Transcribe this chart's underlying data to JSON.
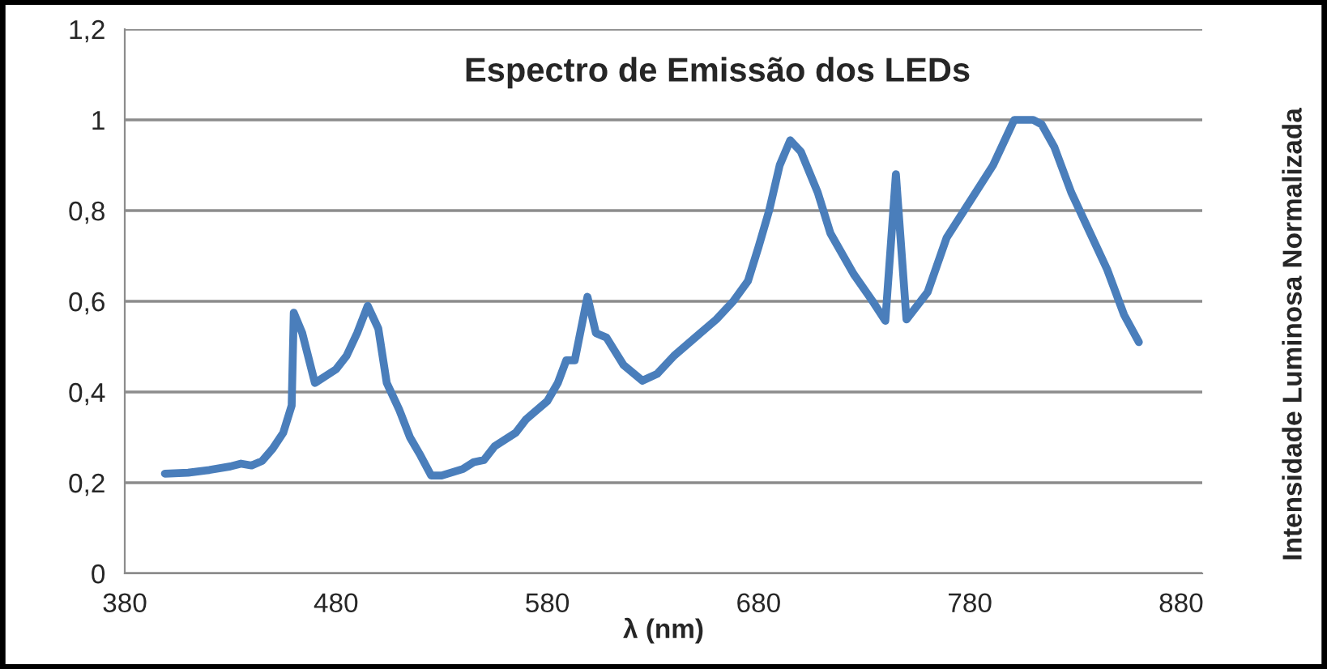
{
  "chart_data": {
    "type": "line",
    "title": "Espectro de Emissão dos LEDs",
    "xlabel": "λ (nm)",
    "ylabel": "Intensidade Luminosa Normalizada",
    "series": [
      {
        "color": "#4a7ebb",
        "x": [
          399,
          410,
          420,
          430,
          435,
          440,
          445,
          450,
          455,
          459,
          460,
          464,
          470,
          480,
          485,
          490,
          495,
          500,
          504,
          510,
          515,
          520,
          525,
          530,
          540,
          545,
          550,
          555,
          565,
          570,
          580,
          585,
          589,
          593,
          596,
          599,
          603,
          608,
          616,
          625,
          632,
          640,
          650,
          660,
          668,
          675,
          680,
          685,
          690,
          695,
          700,
          708,
          714,
          725,
          734,
          740,
          745,
          750,
          760,
          769,
          780,
          791,
          797,
          801,
          805,
          810,
          814,
          820,
          828,
          836,
          845,
          853,
          860
        ],
        "values": [
          0.22,
          0.222,
          0.228,
          0.236,
          0.242,
          0.238,
          0.248,
          0.275,
          0.31,
          0.37,
          0.575,
          0.53,
          0.42,
          0.45,
          0.48,
          0.53,
          0.59,
          0.54,
          0.42,
          0.36,
          0.3,
          0.26,
          0.216,
          0.216,
          0.23,
          0.245,
          0.25,
          0.28,
          0.31,
          0.34,
          0.38,
          0.42,
          0.47,
          0.47,
          0.54,
          0.61,
          0.53,
          0.52,
          0.46,
          0.425,
          0.44,
          0.48,
          0.52,
          0.56,
          0.6,
          0.645,
          0.72,
          0.8,
          0.9,
          0.955,
          0.93,
          0.84,
          0.75,
          0.66,
          0.6,
          0.557,
          0.88,
          0.56,
          0.62,
          0.74,
          0.82,
          0.9,
          0.96,
          1.0,
          1.0,
          1.0,
          0.99,
          0.94,
          0.84,
          0.76,
          0.67,
          0.57,
          0.51
        ]
      }
    ],
    "xlim": [
      380,
      890
    ],
    "xticks": [
      380,
      480,
      580,
      680,
      780,
      880
    ],
    "ylim": [
      0,
      1.2
    ],
    "yticks": [
      0,
      {
        "value": 0.2,
        "label": "0,2"
      },
      {
        "value": 0.4,
        "label": "0,4"
      },
      {
        "value": 0.6,
        "label": "0,6"
      },
      {
        "value": 0.8,
        "label": "0,8"
      },
      1,
      {
        "value": 1.2,
        "label": "1,2"
      }
    ],
    "grid": "y",
    "line_style": "solid",
    "marker": "none"
  }
}
